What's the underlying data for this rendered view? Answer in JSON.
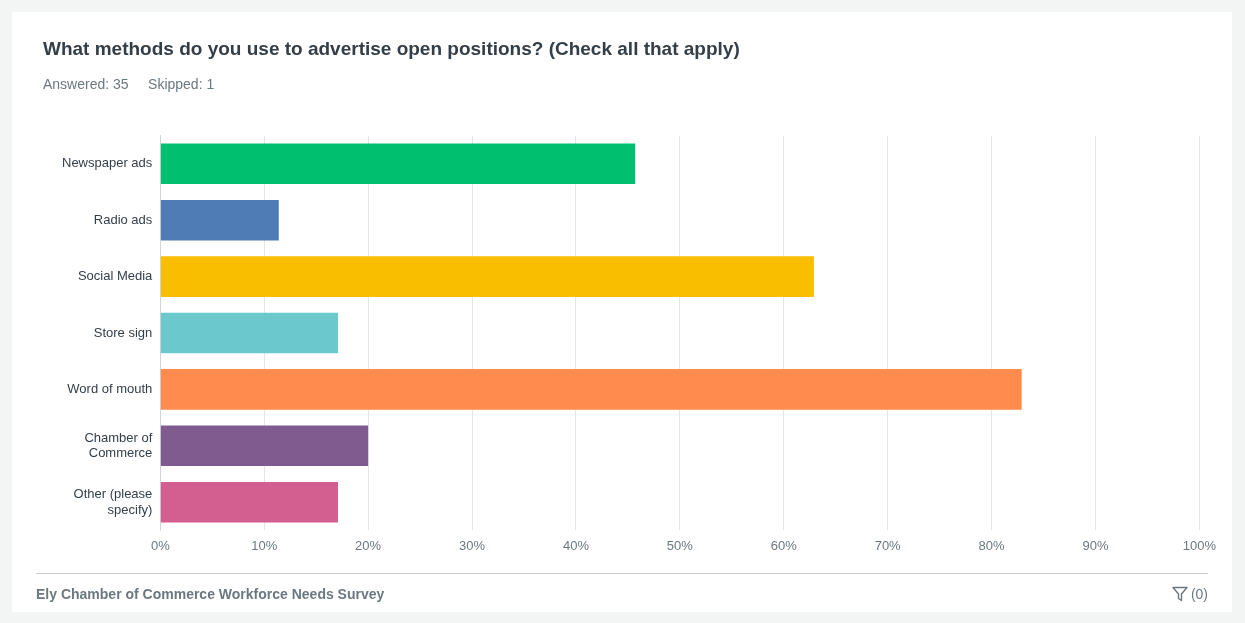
{
  "chart_data": {
    "type": "bar",
    "orientation": "horizontal",
    "title": "What methods do you use to advertise open positions? (Check all that apply)",
    "subtitle": "Answered: 35     Skipped: 1",
    "categories": [
      "Newspaper ads",
      "Radio ads",
      "Social Media",
      "Store sign",
      "Word of mouth",
      "Chamber of Commerce",
      "Other (please specify)"
    ],
    "values": [
      45.7,
      11.4,
      62.9,
      17.1,
      82.9,
      20.0,
      17.1
    ],
    "colors": [
      "#00bf6f",
      "#507cb6",
      "#f9be00",
      "#6bc8cd",
      "#ff8b4f",
      "#7f5b8f",
      "#d25f90"
    ],
    "xlim": [
      0,
      100
    ],
    "xticks": [
      {
        "value": 0,
        "label": "0%"
      },
      {
        "value": 10,
        "label": "10%"
      },
      {
        "value": 20,
        "label": "20%"
      },
      {
        "value": 30,
        "label": "30%"
      },
      {
        "value": 40,
        "label": "40%"
      },
      {
        "value": 50,
        "label": "50%"
      },
      {
        "value": 60,
        "label": "60%"
      },
      {
        "value": 70,
        "label": "70%"
      },
      {
        "value": 80,
        "label": "80%"
      },
      {
        "value": 90,
        "label": "90%"
      },
      {
        "value": 100,
        "label": "100%"
      }
    ],
    "grid": "x",
    "legend": false,
    "annotations": [
      "Ely Chamber of Commerce Workforce Needs Survey",
      "(0)"
    ]
  }
}
